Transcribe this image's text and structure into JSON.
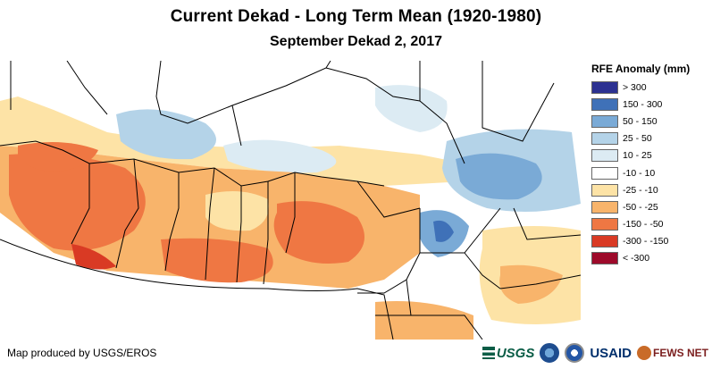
{
  "title": "Current Dekad - Long Term Mean (1920-1980)",
  "subtitle": "September Dekad 2, 2017",
  "legend": {
    "title": "RFE Anomaly (mm)",
    "items": [
      {
        "label": "> 300",
        "color": "#2c3191"
      },
      {
        "label": "150 - 300",
        "color": "#3f71b8"
      },
      {
        "label": "50 - 150",
        "color": "#7aaad6"
      },
      {
        "label": "25 - 50",
        "color": "#b4d3e8"
      },
      {
        "label": "10 - 25",
        "color": "#dcebf3"
      },
      {
        "label": "-10 - 10",
        "color": "#ffffff"
      },
      {
        "label": "-25 - -10",
        "color": "#fde3a6"
      },
      {
        "label": "-50 - -25",
        "color": "#f8b46b"
      },
      {
        "label": "-150 - -50",
        "color": "#ef7743"
      },
      {
        "label": "-300 - -150",
        "color": "#d93a24"
      },
      {
        "label": "< -300",
        "color": "#9d0a2a"
      }
    ]
  },
  "credit": "Map produced by USGS/EROS",
  "logos": {
    "usgs": "USGS",
    "usaid": "USAID",
    "fews": "FEWS NET"
  }
}
